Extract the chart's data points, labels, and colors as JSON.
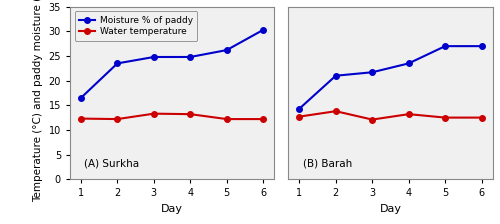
{
  "surkha_days": [
    1,
    2,
    3,
    4,
    5,
    6
  ],
  "surkha_moisture": [
    16.5,
    23.5,
    24.8,
    24.8,
    26.2,
    30.3
  ],
  "surkha_temp": [
    12.3,
    12.2,
    13.3,
    13.2,
    12.2,
    12.2
  ],
  "barah_days": [
    1,
    2,
    3,
    4,
    5,
    6
  ],
  "barah_moisture": [
    14.3,
    21.0,
    21.7,
    23.5,
    27.0,
    27.0
  ],
  "barah_temp": [
    12.7,
    13.8,
    12.1,
    13.2,
    12.5,
    12.5
  ],
  "blue_color": "#0000cc",
  "red_color": "#cc0000",
  "ylim": [
    0,
    35
  ],
  "yticks": [
    0,
    5,
    10,
    15,
    20,
    25,
    30,
    35
  ],
  "xlabel": "Day",
  "ylabel": "Temperature (°C) and paddy moisture (%)",
  "label_moisture": "Moisture % of paddy",
  "label_temp": "Water temperature",
  "label_A": "(A) Surkha",
  "label_B": "(B) Barah",
  "marker": "o",
  "linewidth": 1.5,
  "markersize": 4,
  "bg_color": "#f0f0f0",
  "fig_bg": "#ffffff"
}
